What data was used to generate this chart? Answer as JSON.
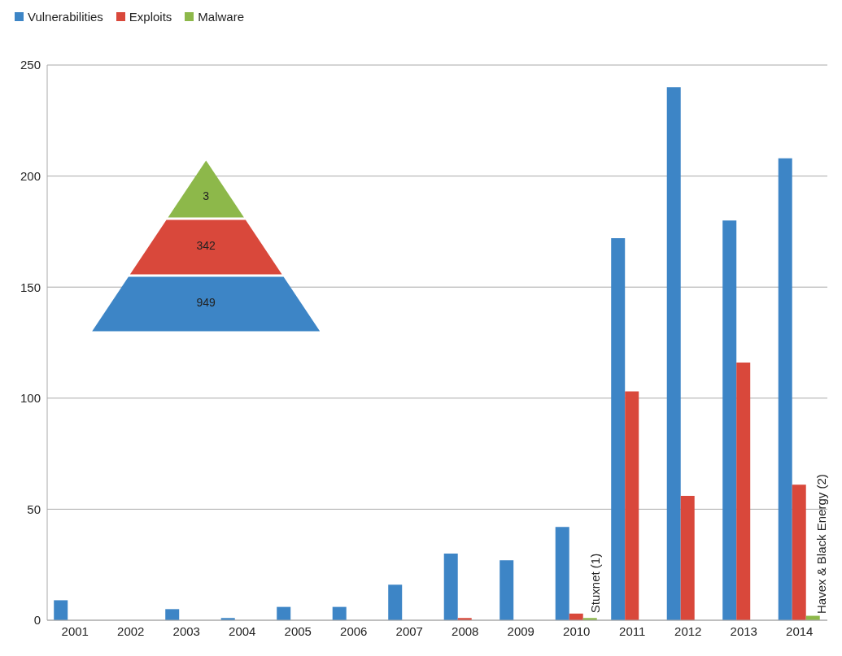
{
  "chart_data": {
    "type": "bar",
    "categories": [
      "2001",
      "2002",
      "2003",
      "2004",
      "2005",
      "2006",
      "2007",
      "2008",
      "2009",
      "2010",
      "2011",
      "2012",
      "2013",
      "2014"
    ],
    "series": [
      {
        "name": "Vulnerabilities",
        "color": "#3d85c6",
        "values": [
          9,
          0,
          5,
          1,
          6,
          6,
          16,
          30,
          27,
          42,
          172,
          240,
          180,
          208
        ]
      },
      {
        "name": "Exploits",
        "color": "#d9483b",
        "values": [
          0,
          0,
          0,
          0,
          0,
          0,
          0,
          1,
          0,
          3,
          103,
          56,
          116,
          61
        ]
      },
      {
        "name": "Malware",
        "color": "#8db84a",
        "values": [
          0,
          0,
          0,
          0,
          0,
          0,
          0,
          0,
          0,
          1,
          0,
          0,
          0,
          2
        ]
      }
    ],
    "ylim": [
      0,
      250
    ],
    "yticks": [
      0,
      50,
      100,
      150,
      200,
      250
    ],
    "grid": "y",
    "legend": "top left",
    "annotations": [
      {
        "text": "Stuxnet (1)",
        "x": "2010",
        "y": 1
      },
      "Havex & Black Energy (2)",
      "3",
      "342",
      "949"
    ]
  }
}
